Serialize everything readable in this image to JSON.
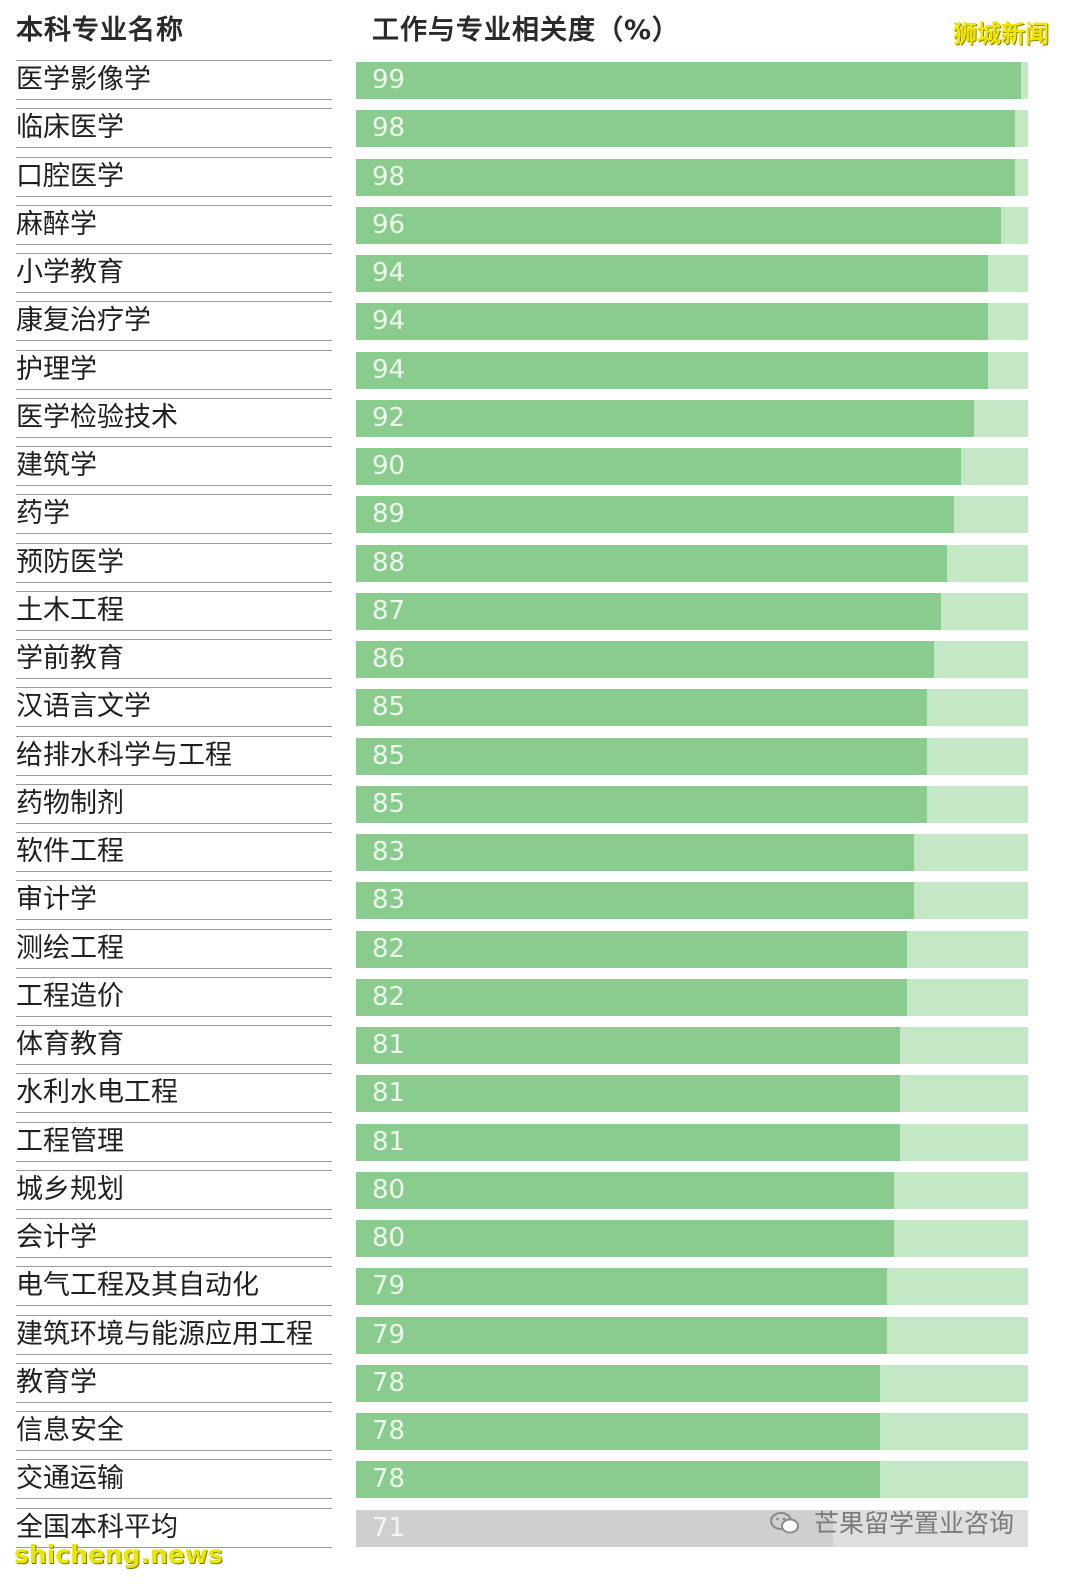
{
  "header": {
    "left": "本科专业名称",
    "right": "工作与专业相关度（%）"
  },
  "brand": "狮城新闻",
  "watermark": {
    "wechat": "芒果留学置业咨询",
    "site": "shicheng.news"
  },
  "colors": {
    "bar": "#89cc8d",
    "track": "#c4e7c5",
    "avg_bar": "#cfcfcf",
    "avg_track": "#dedede"
  },
  "chart_data": {
    "type": "bar",
    "orientation": "horizontal",
    "title": "",
    "xlabel": "工作与专业相关度（%）",
    "ylabel": "本科专业名称",
    "xlim": [
      0,
      100
    ],
    "categories": [
      "医学影像学",
      "临床医学",
      "口腔医学",
      "麻醉学",
      "小学教育",
      "康复治疗学",
      "护理学",
      "医学检验技术",
      "建筑学",
      "药学",
      "预防医学",
      "土木工程",
      "学前教育",
      "汉语言文学",
      "给排水科学与工程",
      "药物制剂",
      "软件工程",
      "审计学",
      "测绘工程",
      "工程造价",
      "体育教育",
      "水利水电工程",
      "工程管理",
      "城乡规划",
      "会计学",
      "电气工程及其自动化",
      "建筑环境与能源应用工程",
      "教育学",
      "信息安全",
      "交通运输",
      "全国本科平均"
    ],
    "values": [
      99,
      98,
      98,
      96,
      94,
      94,
      94,
      92,
      90,
      89,
      88,
      87,
      86,
      85,
      85,
      85,
      83,
      83,
      82,
      82,
      81,
      81,
      81,
      80,
      80,
      79,
      79,
      78,
      78,
      78,
      71
    ]
  }
}
